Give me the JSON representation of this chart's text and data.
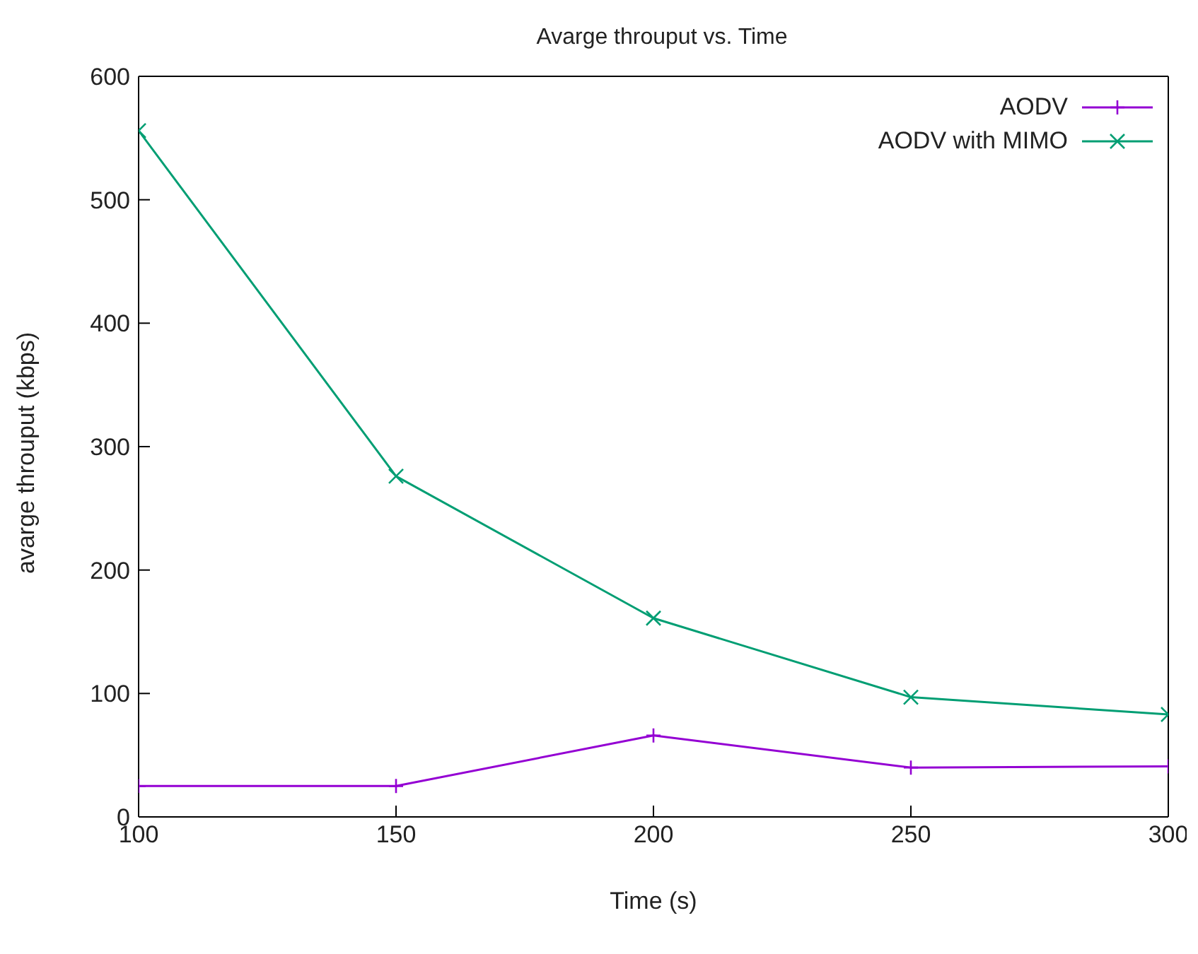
{
  "chart_data": {
    "type": "line",
    "title": "Avarge throuput vs. Time",
    "xlabel": "Time (s)",
    "ylabel": "avarge throuput (kbps)",
    "x": [
      100,
      150,
      200,
      250,
      300
    ],
    "series": [
      {
        "name": "AODV",
        "color": "#9400d3",
        "marker": "plus",
        "values": [
          25,
          25,
          66,
          40,
          41
        ]
      },
      {
        "name": "AODV with MIMO",
        "color": "#009e73",
        "marker": "cross",
        "values": [
          556,
          276,
          161,
          97,
          83
        ]
      }
    ],
    "xlim": [
      100,
      300
    ],
    "xticks": [
      100,
      150,
      200,
      250,
      300
    ],
    "ylim": [
      0,
      600
    ],
    "yticks": [
      0,
      100,
      200,
      300,
      400,
      500,
      600
    ],
    "grid": false,
    "legend": "top right",
    "line_style": "solid"
  }
}
